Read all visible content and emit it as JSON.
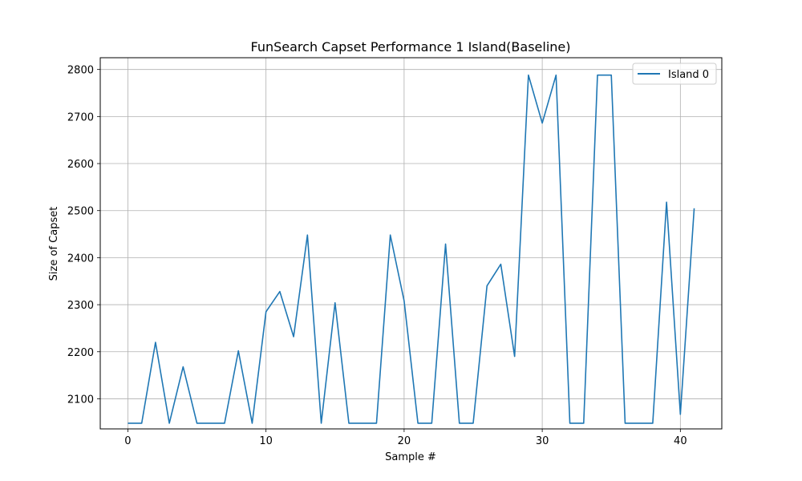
{
  "chart_data": {
    "type": "line",
    "title": "FunSearch Capset Performance 1 Island(Baseline)",
    "xlabel": "Sample #",
    "ylabel": "Size of Capset",
    "xlim": [
      -2,
      43
    ],
    "ylim": [
      2036,
      2825
    ],
    "xticks": [
      0,
      10,
      20,
      30,
      40
    ],
    "yticks": [
      2100,
      2200,
      2300,
      2400,
      2500,
      2600,
      2700,
      2800
    ],
    "grid": true,
    "legend": "top-right",
    "series": [
      {
        "name": "Island 0",
        "color": "#1f77b4",
        "x": [
          0,
          1,
          2,
          3,
          4,
          5,
          6,
          7,
          8,
          9,
          10,
          11,
          12,
          13,
          14,
          15,
          16,
          17,
          18,
          19,
          20,
          21,
          22,
          23,
          24,
          25,
          26,
          27,
          28,
          29,
          30,
          31,
          32,
          33,
          34,
          35,
          36,
          37,
          38,
          39,
          40,
          41
        ],
        "values": [
          2048,
          2048,
          2220,
          2048,
          2168,
          2048,
          2048,
          2048,
          2202,
          2048,
          2285,
          2328,
          2232,
          2448,
          2048,
          2304,
          2048,
          2048,
          2048,
          2448,
          2308,
          2048,
          2048,
          2429,
          2048,
          2048,
          2340,
          2386,
          2190,
          2788,
          2686,
          2788,
          2048,
          2048,
          2788,
          2788,
          2048,
          2048,
          2048,
          2518,
          2067,
          2505
        ]
      }
    ]
  }
}
